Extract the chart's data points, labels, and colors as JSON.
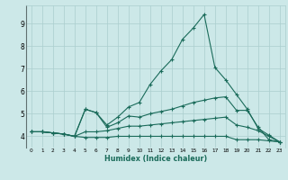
{
  "xlabel": "Humidex (Indice chaleur)",
  "x": [
    0,
    1,
    2,
    3,
    4,
    5,
    6,
    7,
    8,
    9,
    10,
    11,
    12,
    13,
    14,
    15,
    16,
    17,
    18,
    19,
    20,
    21,
    22,
    23
  ],
  "line1": [
    4.2,
    4.2,
    4.15,
    4.1,
    4.0,
    5.2,
    5.05,
    4.5,
    4.85,
    5.3,
    5.5,
    6.3,
    6.9,
    7.4,
    8.3,
    8.8,
    9.4,
    7.05,
    6.5,
    5.85,
    5.2,
    4.35,
    4.05,
    3.75
  ],
  "line2": [
    4.2,
    4.2,
    4.15,
    4.1,
    4.0,
    5.2,
    5.05,
    4.4,
    4.6,
    4.9,
    4.85,
    5.0,
    5.1,
    5.2,
    5.35,
    5.5,
    5.6,
    5.7,
    5.75,
    5.15,
    5.15,
    4.4,
    3.85,
    3.75
  ],
  "line3": [
    4.2,
    4.2,
    4.15,
    4.1,
    4.0,
    4.2,
    4.2,
    4.25,
    4.35,
    4.45,
    4.45,
    4.5,
    4.55,
    4.6,
    4.65,
    4.7,
    4.75,
    4.8,
    4.85,
    4.5,
    4.4,
    4.25,
    4.0,
    3.75
  ],
  "line4": [
    4.2,
    4.2,
    4.15,
    4.1,
    4.0,
    3.95,
    3.95,
    3.95,
    4.0,
    4.0,
    4.0,
    4.0,
    4.0,
    4.0,
    4.0,
    4.0,
    4.0,
    4.0,
    4.0,
    3.85,
    3.85,
    3.85,
    3.8,
    3.75
  ],
  "bg_color": "#cce8e8",
  "grid_color": "#aacece",
  "line_color": "#1a6b5a",
  "ylim": [
    3.5,
    9.8
  ],
  "xlim": [
    -0.5,
    23.5
  ],
  "yticks": [
    4,
    5,
    6,
    7,
    8,
    9
  ],
  "xticks": [
    0,
    1,
    2,
    3,
    4,
    5,
    6,
    7,
    8,
    9,
    10,
    11,
    12,
    13,
    14,
    15,
    16,
    17,
    18,
    19,
    20,
    21,
    22,
    23
  ]
}
